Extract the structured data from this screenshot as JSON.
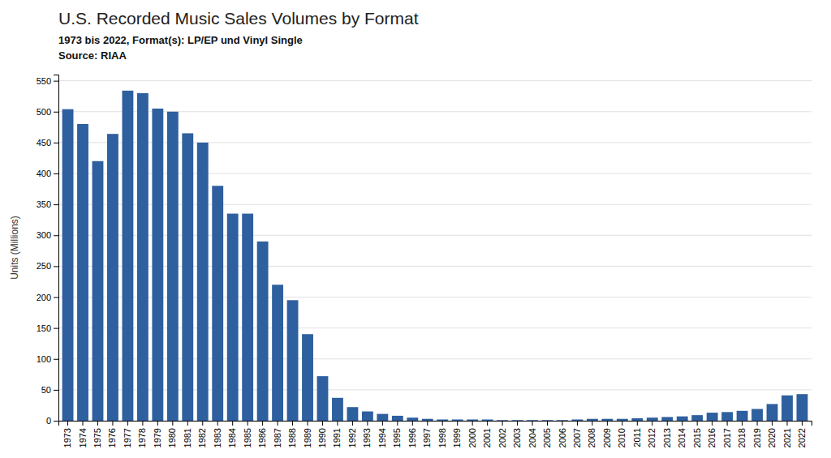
{
  "chart_data": {
    "type": "bar",
    "title": "U.S. Recorded Music Sales Volumes by Format",
    "subtitle": "1973 bis 2022, Format(s): LP/EP und Vinyl Single",
    "source": "Source: RIAA",
    "ylabel": "Units (Millions)",
    "categories": [
      "1973",
      "1974",
      "1975",
      "1976",
      "1977",
      "1978",
      "1979",
      "1980",
      "1981",
      "1982",
      "1983",
      "1984",
      "1985",
      "1986",
      "1987",
      "1988",
      "1989",
      "1990",
      "1991",
      "1992",
      "1993",
      "1994",
      "1995",
      "1996",
      "1997",
      "1998",
      "1999",
      "2000",
      "2001",
      "2002",
      "2003",
      "2004",
      "2005",
      "2006",
      "2007",
      "2008",
      "2009",
      "2010",
      "2011",
      "2012",
      "2013",
      "2014",
      "2015",
      "2016",
      "2017",
      "2018",
      "2019",
      "2020",
      "2021",
      "2022"
    ],
    "values": [
      504,
      480,
      420,
      464,
      534,
      530,
      505,
      500,
      465,
      450,
      380,
      335,
      335,
      290,
      220,
      195,
      140,
      72,
      37,
      22,
      15,
      11,
      8,
      5,
      3,
      2,
      2,
      2,
      2,
      1,
      1,
      1,
      1,
      1,
      2,
      3,
      3,
      3,
      4,
      5,
      6,
      7,
      9,
      13,
      14,
      16,
      19,
      27,
      41,
      43
    ],
    "color": "#2e5f9e",
    "ylim": [
      0,
      560
    ],
    "yticks": [
      0,
      50,
      100,
      150,
      200,
      250,
      300,
      350,
      400,
      450,
      500,
      550
    ],
    "grid": true
  }
}
